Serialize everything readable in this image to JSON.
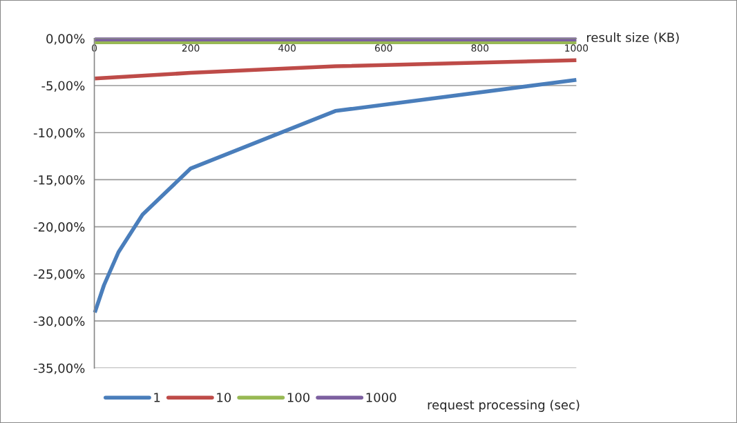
{
  "chart_data": {
    "type": "line",
    "xlabel": "result size (KB)",
    "legend_title": "request processing (sec)",
    "xlim": [
      0,
      1000
    ],
    "xticks": [
      0,
      200,
      400,
      600,
      800,
      1000
    ],
    "ylim": [
      -35,
      0
    ],
    "yticks": [
      {
        "value": 0,
        "label": "0,00%"
      },
      {
        "value": -5,
        "label": "-5,00%"
      },
      {
        "value": -10,
        "label": "-10,00%"
      },
      {
        "value": -15,
        "label": "-15,00%"
      },
      {
        "value": -20,
        "label": "-20,00%"
      },
      {
        "value": -25,
        "label": "-25,00%"
      },
      {
        "value": -30,
        "label": "-30,00%"
      },
      {
        "value": -35,
        "label": "-35,00%"
      }
    ],
    "grid": "y",
    "legend": "bottom",
    "marker": "none",
    "line_style": "solid",
    "series": [
      {
        "name": "1",
        "color": "#4a7ebb",
        "x": [
          1,
          20,
          50,
          100,
          200,
          500,
          1000
        ],
        "values": [
          -29.1,
          -26.2,
          -22.7,
          -18.7,
          -13.8,
          -7.7,
          -4.4
        ]
      },
      {
        "name": "10",
        "color": "#be4b48",
        "x": [
          1,
          200,
          500,
          1000
        ],
        "values": [
          -4.25,
          -3.65,
          -2.95,
          -2.3
        ]
      },
      {
        "name": "100",
        "color": "#98b954",
        "x": [
          1,
          1000
        ],
        "values": [
          -0.4,
          -0.4
        ]
      },
      {
        "name": "1000",
        "color": "#7d60a0",
        "x": [
          1,
          1000
        ],
        "values": [
          -0.1,
          -0.1
        ]
      }
    ]
  }
}
